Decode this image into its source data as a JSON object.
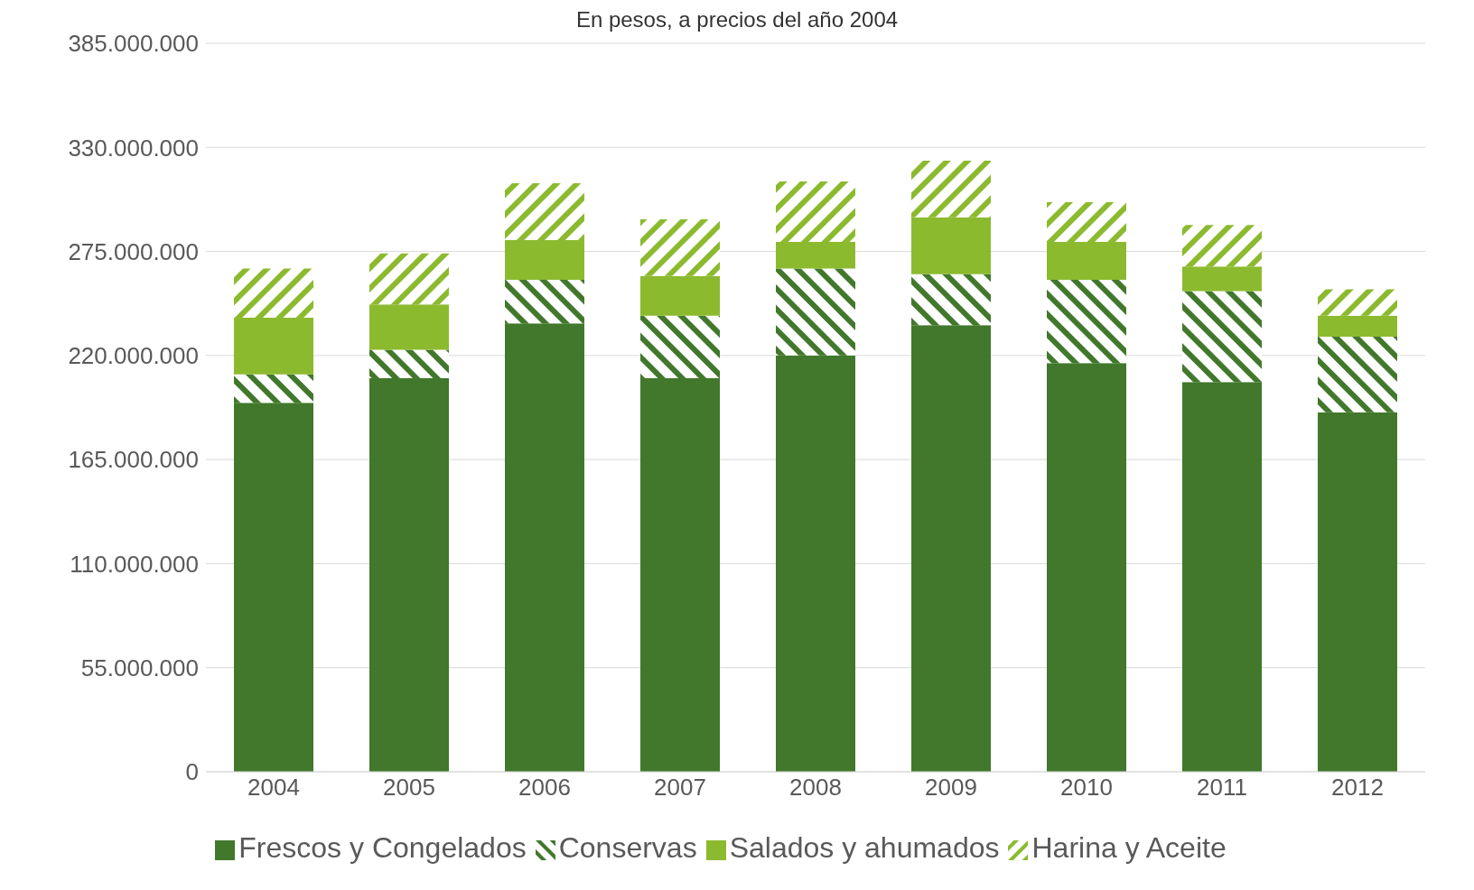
{
  "chart_data": {
    "type": "bar",
    "title": "En pesos, a precios del año 2004",
    "stacked": true,
    "categories": [
      "2004",
      "2005",
      "2006",
      "2007",
      "2008",
      "2009",
      "2010",
      "2011",
      "2012"
    ],
    "series": [
      {
        "name": "Frescos y Congelados",
        "color": "#41782b",
        "values": [
          195000000,
          208000000,
          237000000,
          208000000,
          220000000,
          236000000,
          216000000,
          206000000,
          190000000
        ]
      },
      {
        "name": "Conservas",
        "color": "#41782b",
        "values": [
          15000000,
          15000000,
          23000000,
          33000000,
          46000000,
          27000000,
          44000000,
          48000000,
          40000000
        ]
      },
      {
        "name": "Salados y ahumados",
        "color": "#8cba2f",
        "values": [
          30000000,
          24000000,
          21000000,
          21000000,
          14000000,
          30000000,
          20000000,
          13000000,
          11000000
        ]
      },
      {
        "name": "Harina y Aceite",
        "color": "#8cba2f",
        "values": [
          26000000,
          27000000,
          30000000,
          30000000,
          32000000,
          30000000,
          21000000,
          22000000,
          14000000
        ]
      }
    ],
    "ylim": [
      0,
      385000000
    ],
    "yticks": [
      {
        "value": 0,
        "label": "0"
      },
      {
        "value": 55000000,
        "label": "55.000.000"
      },
      {
        "value": 110000000,
        "label": "110.000.000"
      },
      {
        "value": 165000000,
        "label": "165.000.000"
      },
      {
        "value": 220000000,
        "label": "220.000.000"
      },
      {
        "value": 275000000,
        "label": "275.000.000"
      },
      {
        "value": 330000000,
        "label": "330.000.000"
      },
      {
        "value": 385000000,
        "label": "385.000.000"
      }
    ],
    "grid": "y",
    "legend": "bottom"
  }
}
